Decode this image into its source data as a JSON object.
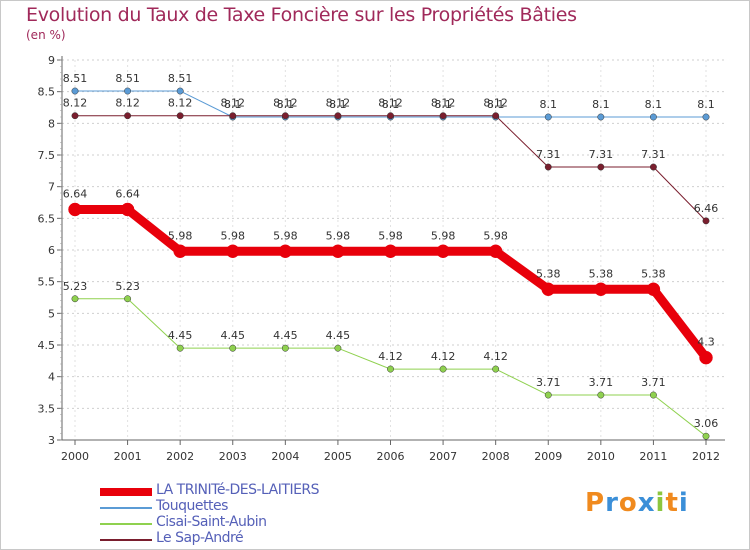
{
  "header": {
    "title": "Evolution du Taux de Taxe Foncière sur les Propriétés Bâties",
    "subtitle": "(en %)"
  },
  "logo": {
    "text": "Proxiti"
  },
  "chart_data": {
    "type": "line",
    "title": "Evolution du Taux de Taxe Foncière sur les Propriétés Bâties",
    "ylabel": "(en %)",
    "xlabel": "",
    "ylim": [
      3,
      9
    ],
    "yticks": [
      "3",
      "3.5",
      "4",
      "4.5",
      "5",
      "5.5",
      "6",
      "6.5",
      "7",
      "7.5",
      "8",
      "8.5",
      "9"
    ],
    "categories": [
      "2000",
      "2001",
      "2002",
      "2003",
      "2004",
      "2005",
      "2006",
      "2007",
      "2008",
      "2009",
      "2010",
      "2011",
      "2012"
    ],
    "series": [
      {
        "name": "Touquettes",
        "color": "#5b9bd5",
        "width": 1,
        "values": [
          8.51,
          8.51,
          8.51,
          8.1,
          8.1,
          8.1,
          8.1,
          8.1,
          8.1,
          8.1,
          8.1,
          8.1,
          8.1
        ],
        "labels": [
          "8.51",
          "8.51",
          "8.51",
          "8.1",
          "8.1",
          "8.1",
          "8.1",
          "8.1",
          "8.1",
          "8.1",
          "8.1",
          "8.1",
          "8.1"
        ]
      },
      {
        "name": "Le Sap-André",
        "color": "#7a1e2e",
        "width": 1,
        "values": [
          8.12,
          8.12,
          8.12,
          8.12,
          8.12,
          8.12,
          8.12,
          8.12,
          8.12,
          7.31,
          7.31,
          7.31,
          6.46
        ],
        "labels": [
          "8.12",
          "8.12",
          "8.12",
          "8.12",
          "8.12",
          "8.12",
          "8.12",
          "8.12",
          "8.12",
          "7.31",
          "7.31",
          "7.31",
          "6.46"
        ]
      },
      {
        "name": "Cisai-Saint-Aubin",
        "color": "#8fd14f",
        "width": 1,
        "values": [
          5.23,
          5.23,
          4.45,
          4.45,
          4.45,
          4.45,
          4.12,
          4.12,
          4.12,
          3.71,
          3.71,
          3.71,
          3.06
        ],
        "labels": [
          "5.23",
          "5.23",
          "4.45",
          "4.45",
          "4.45",
          "4.45",
          "4.12",
          "4.12",
          "4.12",
          "3.71",
          "3.71",
          "3.71",
          "3.06"
        ]
      },
      {
        "name": "LA TRINITé-DES-LAITIERS",
        "color": "#e8000b",
        "width": 9,
        "values": [
          6.64,
          6.64,
          5.98,
          5.98,
          5.98,
          5.98,
          5.98,
          5.98,
          5.98,
          5.38,
          5.38,
          5.38,
          4.3
        ],
        "labels": [
          "6.64",
          "6.64",
          "5.98",
          "5.98",
          "5.98",
          "5.98",
          "5.98",
          "5.98",
          "5.98",
          "5.38",
          "5.38",
          "5.38",
          "4.3"
        ]
      }
    ],
    "legend": [
      "LA TRINITé-DES-LAITIERS",
      "Touquettes",
      "Cisai-Saint-Aubin",
      "Le Sap-André"
    ]
  }
}
